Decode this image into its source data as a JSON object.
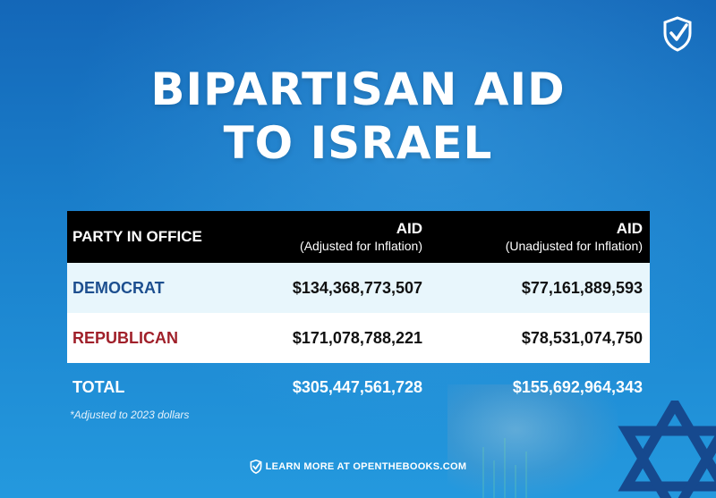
{
  "title": [
    "BIPARTISAN AID",
    "TO ISRAEL"
  ],
  "chart_data": {
    "type": "table",
    "columns": [
      {
        "main": "PARTY IN OFFICE",
        "sub": ""
      },
      {
        "main": "AID",
        "sub": "(Adjusted for Inflation)"
      },
      {
        "main": "AID",
        "sub": "(Unadjusted for Inflation)"
      }
    ],
    "rows": [
      {
        "party": "DEMOCRAT",
        "adjusted": "$134,368,773,507",
        "unadjusted": "$77,161,889,593"
      },
      {
        "party": "REPUBLICAN",
        "adjusted": "$171,078,788,221",
        "unadjusted": "$78,531,074,750"
      },
      {
        "party": "TOTAL",
        "adjusted": "$305,447,561,728",
        "unadjusted": "$155,692,964,343"
      }
    ]
  },
  "footnote": "*Adjusted to 2023 dollars",
  "footer": "LEARN MORE AT OPENTHEBOOKS.COM",
  "colors": {
    "democrat": "#1d4f8f",
    "republican": "#a0202a",
    "header_bg": "#000000"
  },
  "icons": [
    "shield-check-icon",
    "star-of-david-icon"
  ]
}
